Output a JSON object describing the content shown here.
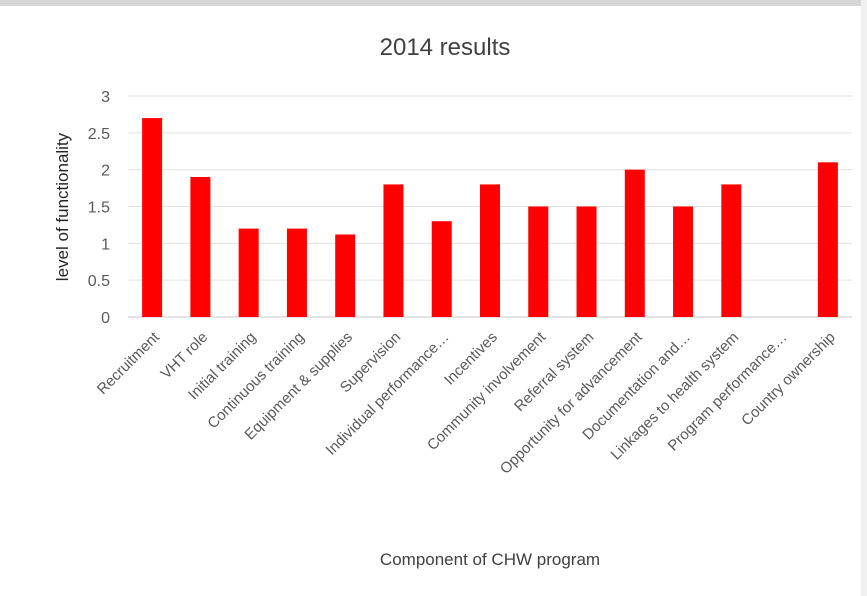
{
  "chart_data": {
    "type": "bar",
    "title": "2014 results",
    "xlabel": "Component of CHW program",
    "ylabel": "level of functionality",
    "ylim": [
      0,
      3
    ],
    "yticks": [
      "0",
      "0.5",
      "1",
      "1.5",
      "2",
      "2.5",
      "3"
    ],
    "grid": true,
    "legend": "none",
    "bar_color": "#ff0000",
    "categories": [
      "Recruitment",
      "VHT role",
      "Initial training",
      "Continuous training",
      "Equipment & supplies",
      "Supervision",
      "Individual performance…",
      "Incentives",
      "Community involvement",
      "Referral system",
      "Opportunity for advancement",
      "Documentation and…",
      "Linkages to health system",
      "Program performance…",
      "Country ownership"
    ],
    "values": [
      2.7,
      1.9,
      1.2,
      1.2,
      1.12,
      1.8,
      1.3,
      1.8,
      1.5,
      1.5,
      2.0,
      1.5,
      1.8,
      0,
      2.1
    ]
  }
}
